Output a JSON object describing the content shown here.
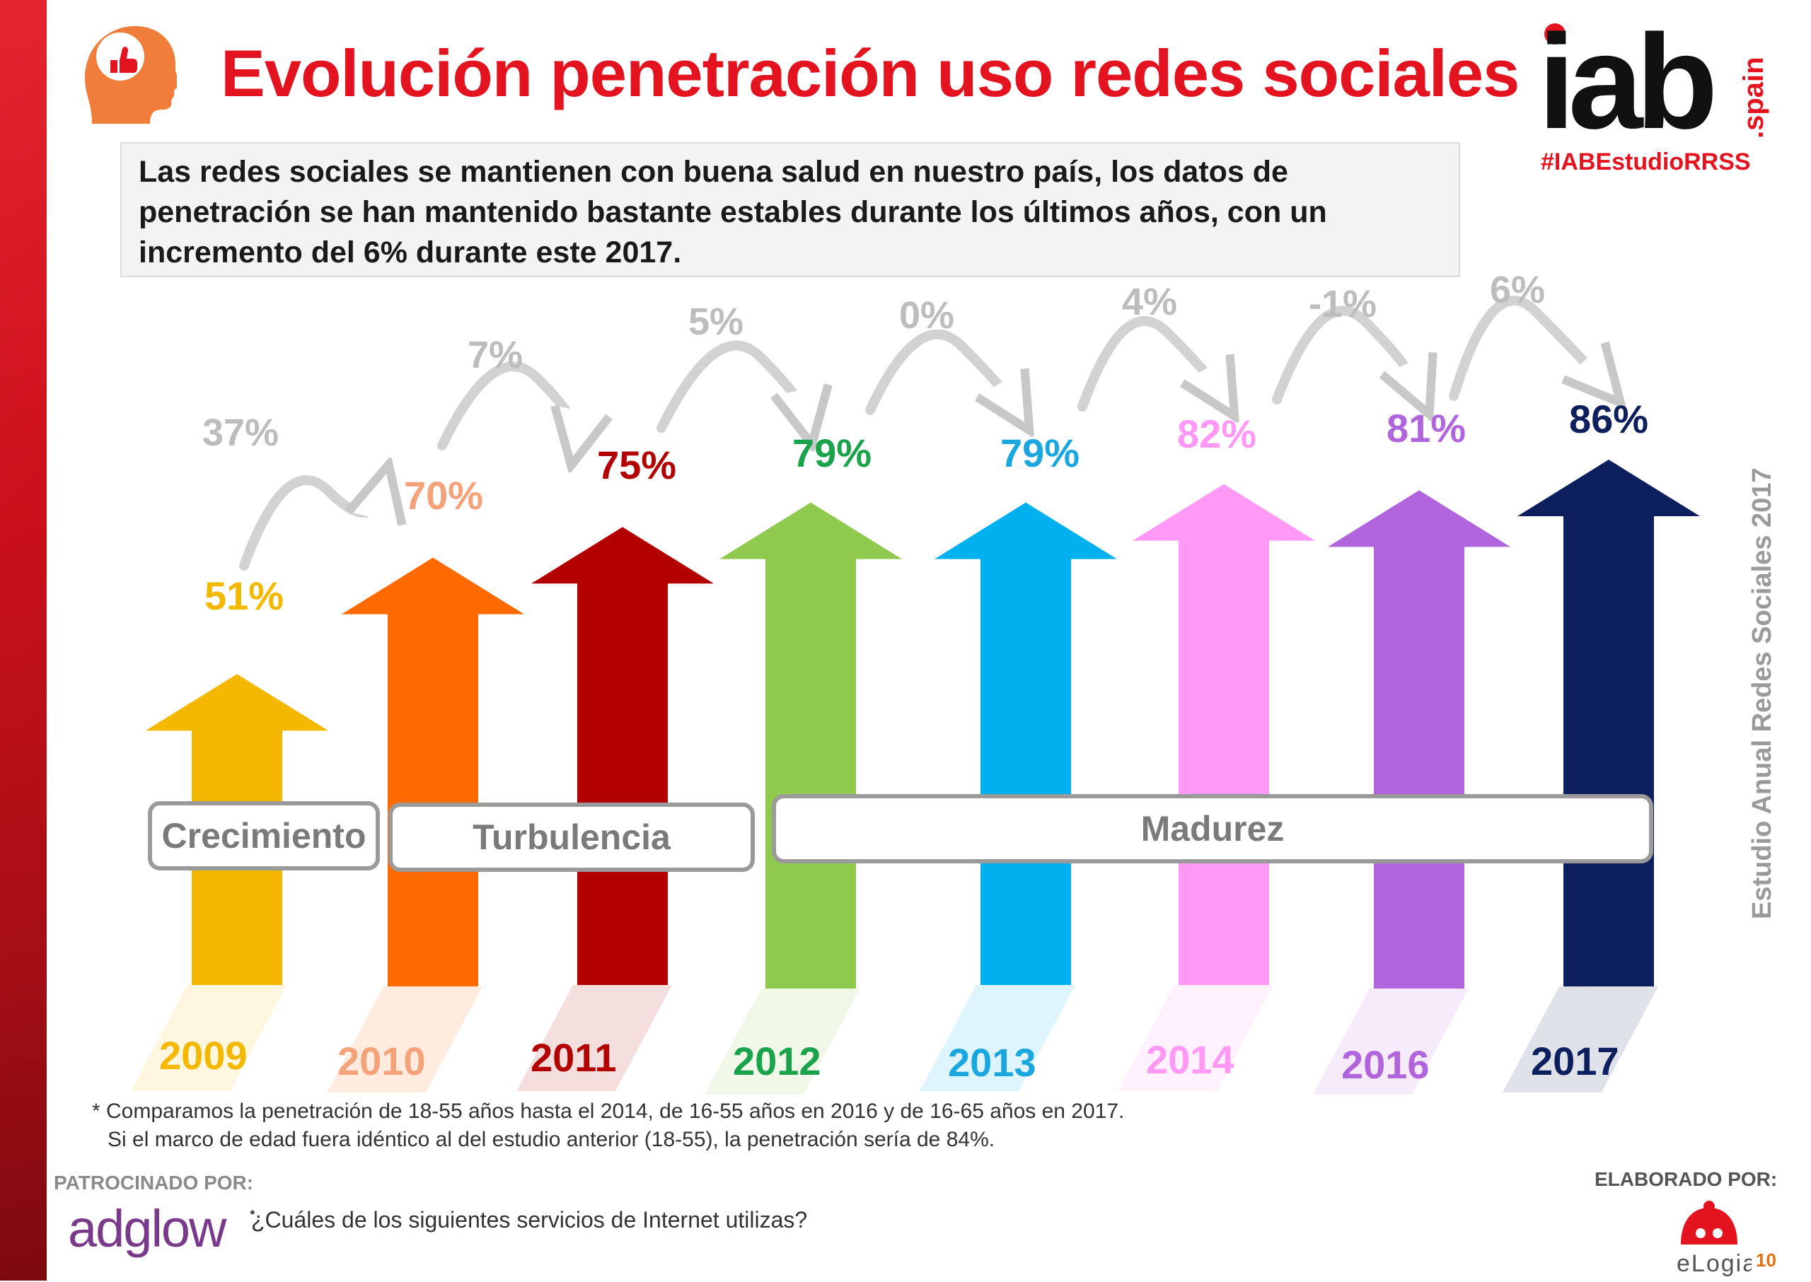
{
  "title": "Evolución penetración uso redes sociales",
  "intro": [
    "Las redes sociales se mantienen con buena salud en nuestro país, los datos de",
    "penetración se han mantenido  bastante estables durante los últimos años, con un",
    "incremento del 6% durante este 2017."
  ],
  "brand": {
    "logo_text": "iab",
    "logo_sub": ".spain",
    "hashtag": "#IABEstudioRRSS"
  },
  "side_text": "Estudio Anual Redes Sociales 2017",
  "colors": {
    "accent": "#e3131f",
    "year_2009": "#f5b800",
    "year_2010": "#ff6a00",
    "year_2011": "#b30000",
    "year_2012": "#8fc94e",
    "year_2013": "#00b0ef",
    "year_2014": "#ff99f5",
    "year_2016": "#b065dc",
    "year_2017": "#0d1f5c"
  },
  "chart_data": {
    "type": "bar",
    "categories": [
      "2009",
      "2010",
      "2011",
      "2012",
      "2013",
      "2014",
      "2016",
      "2017"
    ],
    "values": [
      51,
      70,
      75,
      79,
      79,
      82,
      81,
      86
    ],
    "value_labels": [
      "51%",
      "70%",
      "75%",
      "79%",
      "79%",
      "82%",
      "81%",
      "86%"
    ],
    "category_label_colors": [
      "#f5b800",
      "#f4a27a",
      "#b30000",
      "#1aa34a",
      "#1aa7e0",
      "#ff99f5",
      "#b065dc",
      "#0d1f5c"
    ],
    "value_label_colors": [
      "#f5b800",
      "#f4a27a",
      "#b30000",
      "#1aa34a",
      "#1aa7e0",
      "#ff99f5",
      "#b065dc",
      "#0d1f5c"
    ],
    "changes": [
      "37%",
      "7%",
      "5%",
      "0%",
      "4%",
      "-1%",
      "6%"
    ],
    "phases": [
      {
        "label": "Crecimiento",
        "from": "2009",
        "to": "2009"
      },
      {
        "label": "Turbulencia",
        "from": "2010",
        "to": "2011"
      },
      {
        "label": "Madurez",
        "from": "2012",
        "to": "2017"
      }
    ],
    "ylim": [
      0,
      100
    ],
    "grid": false
  },
  "footnote": [
    "* Comparamos la penetración de 18-55 años hasta el 2014, de 16-55 años en 2016 y de 16-65 años en 2017.",
    "Si el marco de edad fuera idéntico al del estudio anterior (18-55), la penetración sería de 84%."
  ],
  "sponsor": {
    "label": "PATROCINADO POR:",
    "name": "adglow",
    "question": "¿Cuáles de los siguientes servicios de Internet utilizas?"
  },
  "author": {
    "label": "ELABORADO POR:",
    "name": "eLogia"
  },
  "page_number": "10"
}
